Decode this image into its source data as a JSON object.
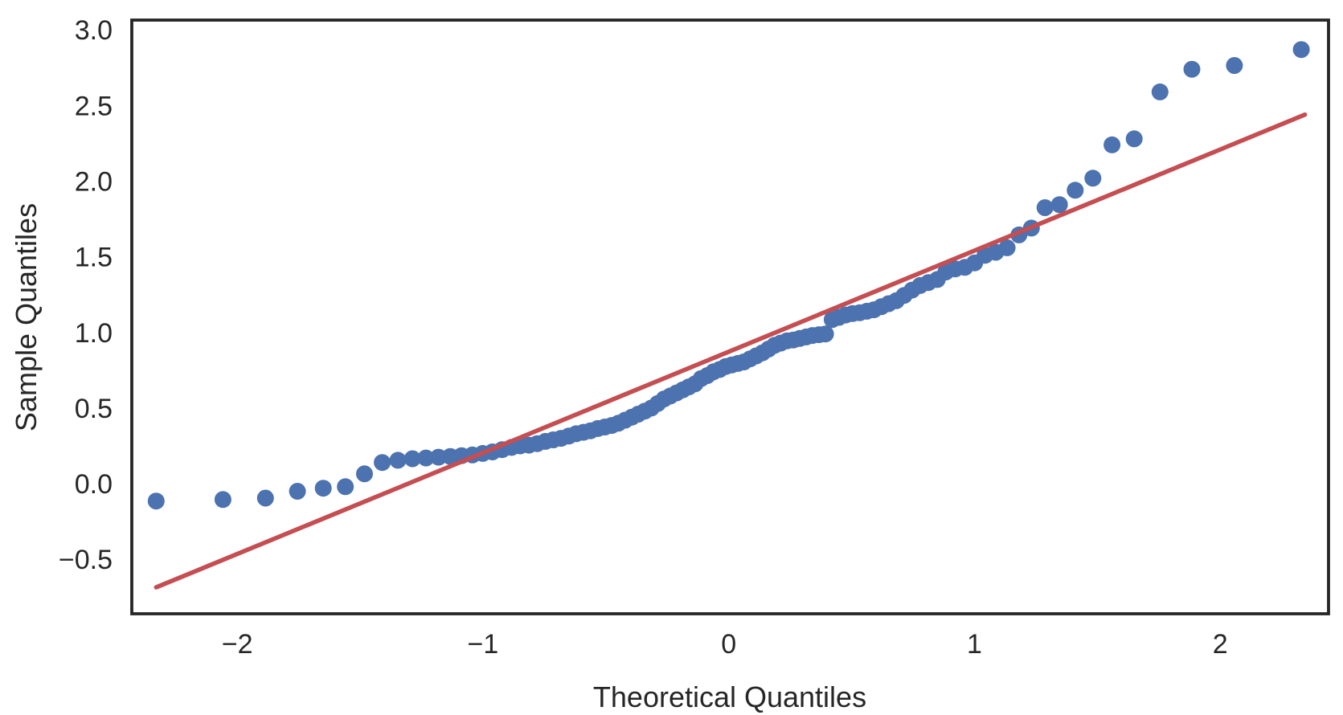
{
  "chart_data": {
    "type": "scatter",
    "title": "",
    "xlabel": "Theoretical Quantiles",
    "ylabel": "Sample Quantiles",
    "xlim": [
      -2.429,
      2.441
    ],
    "ylim": [
      -0.86,
      3.065
    ],
    "grid": false,
    "legend": null,
    "xticks": {
      "values": [
        -2,
        -1,
        0,
        1,
        2
      ],
      "labels": [
        "−2",
        "−1",
        "0",
        "1",
        "2"
      ]
    },
    "yticks": {
      "values": [
        -0.5,
        0.0,
        0.5,
        1.0,
        1.5,
        2.0,
        2.5,
        3.0
      ],
      "labels": [
        "−0.5",
        "0.0",
        "0.5",
        "1.0",
        "1.5",
        "2.0",
        "2.5",
        "3.0"
      ]
    },
    "colors": {
      "point": "#4C72B0",
      "line": "#C44E52",
      "spine": "#262626",
      "text": "#262626",
      "background": "#ffffff"
    },
    "series": [
      {
        "name": "sample-quantiles-points",
        "type": "scatter",
        "color": "#4C72B0",
        "x": [
          -2.33,
          -2.058,
          -1.885,
          -1.755,
          -1.65,
          -1.56,
          -1.482,
          -1.41,
          -1.346,
          -1.287,
          -1.232,
          -1.181,
          -1.133,
          -1.087,
          -1.043,
          -1.001,
          -0.961,
          -0.922,
          -0.884,
          -0.849,
          -0.813,
          -0.779,
          -0.746,
          -0.714,
          -0.682,
          -0.651,
          -0.621,
          -0.591,
          -0.562,
          -0.533,
          -0.504,
          -0.476,
          -0.449,
          -0.421,
          -0.394,
          -0.368,
          -0.341,
          -0.315,
          -0.289,
          -0.263,
          -0.238,
          -0.212,
          -0.187,
          -0.162,
          -0.137,
          -0.112,
          -0.087,
          -0.062,
          -0.037,
          -0.012,
          0.012,
          0.037,
          0.062,
          0.087,
          0.112,
          0.137,
          0.162,
          0.187,
          0.212,
          0.238,
          0.263,
          0.289,
          0.315,
          0.341,
          0.368,
          0.394,
          0.421,
          0.449,
          0.476,
          0.504,
          0.533,
          0.562,
          0.591,
          0.621,
          0.651,
          0.682,
          0.714,
          0.746,
          0.779,
          0.813,
          0.849,
          0.884,
          0.922,
          0.961,
          1.001,
          1.043,
          1.087,
          1.133,
          1.181,
          1.232,
          1.287,
          1.346,
          1.41,
          1.482,
          1.56,
          1.65,
          1.755,
          1.885,
          2.058,
          2.33
        ],
        "y": [
          -0.115,
          -0.105,
          -0.095,
          -0.05,
          -0.03,
          -0.02,
          0.065,
          0.14,
          0.155,
          0.165,
          0.17,
          0.175,
          0.18,
          0.185,
          0.19,
          0.2,
          0.21,
          0.225,
          0.24,
          0.25,
          0.255,
          0.265,
          0.28,
          0.29,
          0.3,
          0.315,
          0.33,
          0.34,
          0.35,
          0.365,
          0.375,
          0.385,
          0.4,
          0.42,
          0.44,
          0.46,
          0.48,
          0.5,
          0.53,
          0.56,
          0.58,
          0.6,
          0.62,
          0.64,
          0.66,
          0.695,
          0.715,
          0.74,
          0.755,
          0.775,
          0.785,
          0.795,
          0.805,
          0.825,
          0.845,
          0.865,
          0.89,
          0.915,
          0.93,
          0.945,
          0.95,
          0.96,
          0.97,
          0.98,
          0.985,
          0.99,
          1.085,
          1.1,
          1.115,
          1.125,
          1.13,
          1.14,
          1.15,
          1.17,
          1.19,
          1.21,
          1.245,
          1.28,
          1.31,
          1.33,
          1.35,
          1.4,
          1.42,
          1.43,
          1.46,
          1.51,
          1.53,
          1.56,
          1.645,
          1.69,
          1.825,
          1.845,
          1.94,
          2.02,
          2.24,
          2.28,
          2.59,
          2.74,
          2.765,
          2.87
        ]
      },
      {
        "name": "qq-fit-line",
        "type": "line",
        "color": "#C44E52",
        "x": [
          -2.33,
          2.345
        ],
        "y": [
          -0.685,
          2.44
        ]
      }
    ]
  }
}
